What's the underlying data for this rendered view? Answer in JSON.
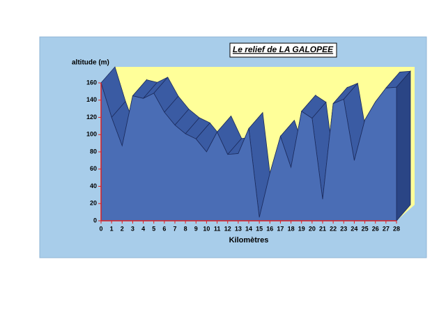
{
  "chart_data": {
    "type": "area3d",
    "title": "Le relief de LA GALOPEE",
    "y_label": "altitude (m)",
    "x_label": "Kilomètres",
    "x": [
      0,
      1,
      2,
      3,
      4,
      5,
      6,
      7,
      8,
      9,
      10,
      11,
      12,
      13,
      14,
      15,
      16,
      17,
      18,
      19,
      20,
      21,
      22,
      23,
      24,
      25,
      26,
      27,
      28
    ],
    "values": [
      160,
      120,
      87,
      145,
      142,
      148,
      126,
      111,
      101,
      95,
      80,
      103,
      77,
      78,
      107,
      4,
      55,
      98,
      62,
      127,
      119,
      25,
      136,
      141,
      70,
      117,
      138,
      154,
      155
    ],
    "xlim": [
      0,
      28
    ],
    "xticks": [
      0,
      1,
      2,
      3,
      4,
      5,
      6,
      7,
      8,
      9,
      10,
      11,
      12,
      13,
      14,
      15,
      16,
      17,
      18,
      19,
      20,
      21,
      22,
      23,
      24,
      25,
      26,
      27,
      28
    ],
    "ylim": [
      0,
      160
    ],
    "yticks": [
      0,
      20,
      40,
      60,
      80,
      100,
      120,
      140,
      160
    ],
    "color": "#4a6db5",
    "axis_color": "#e02020"
  }
}
